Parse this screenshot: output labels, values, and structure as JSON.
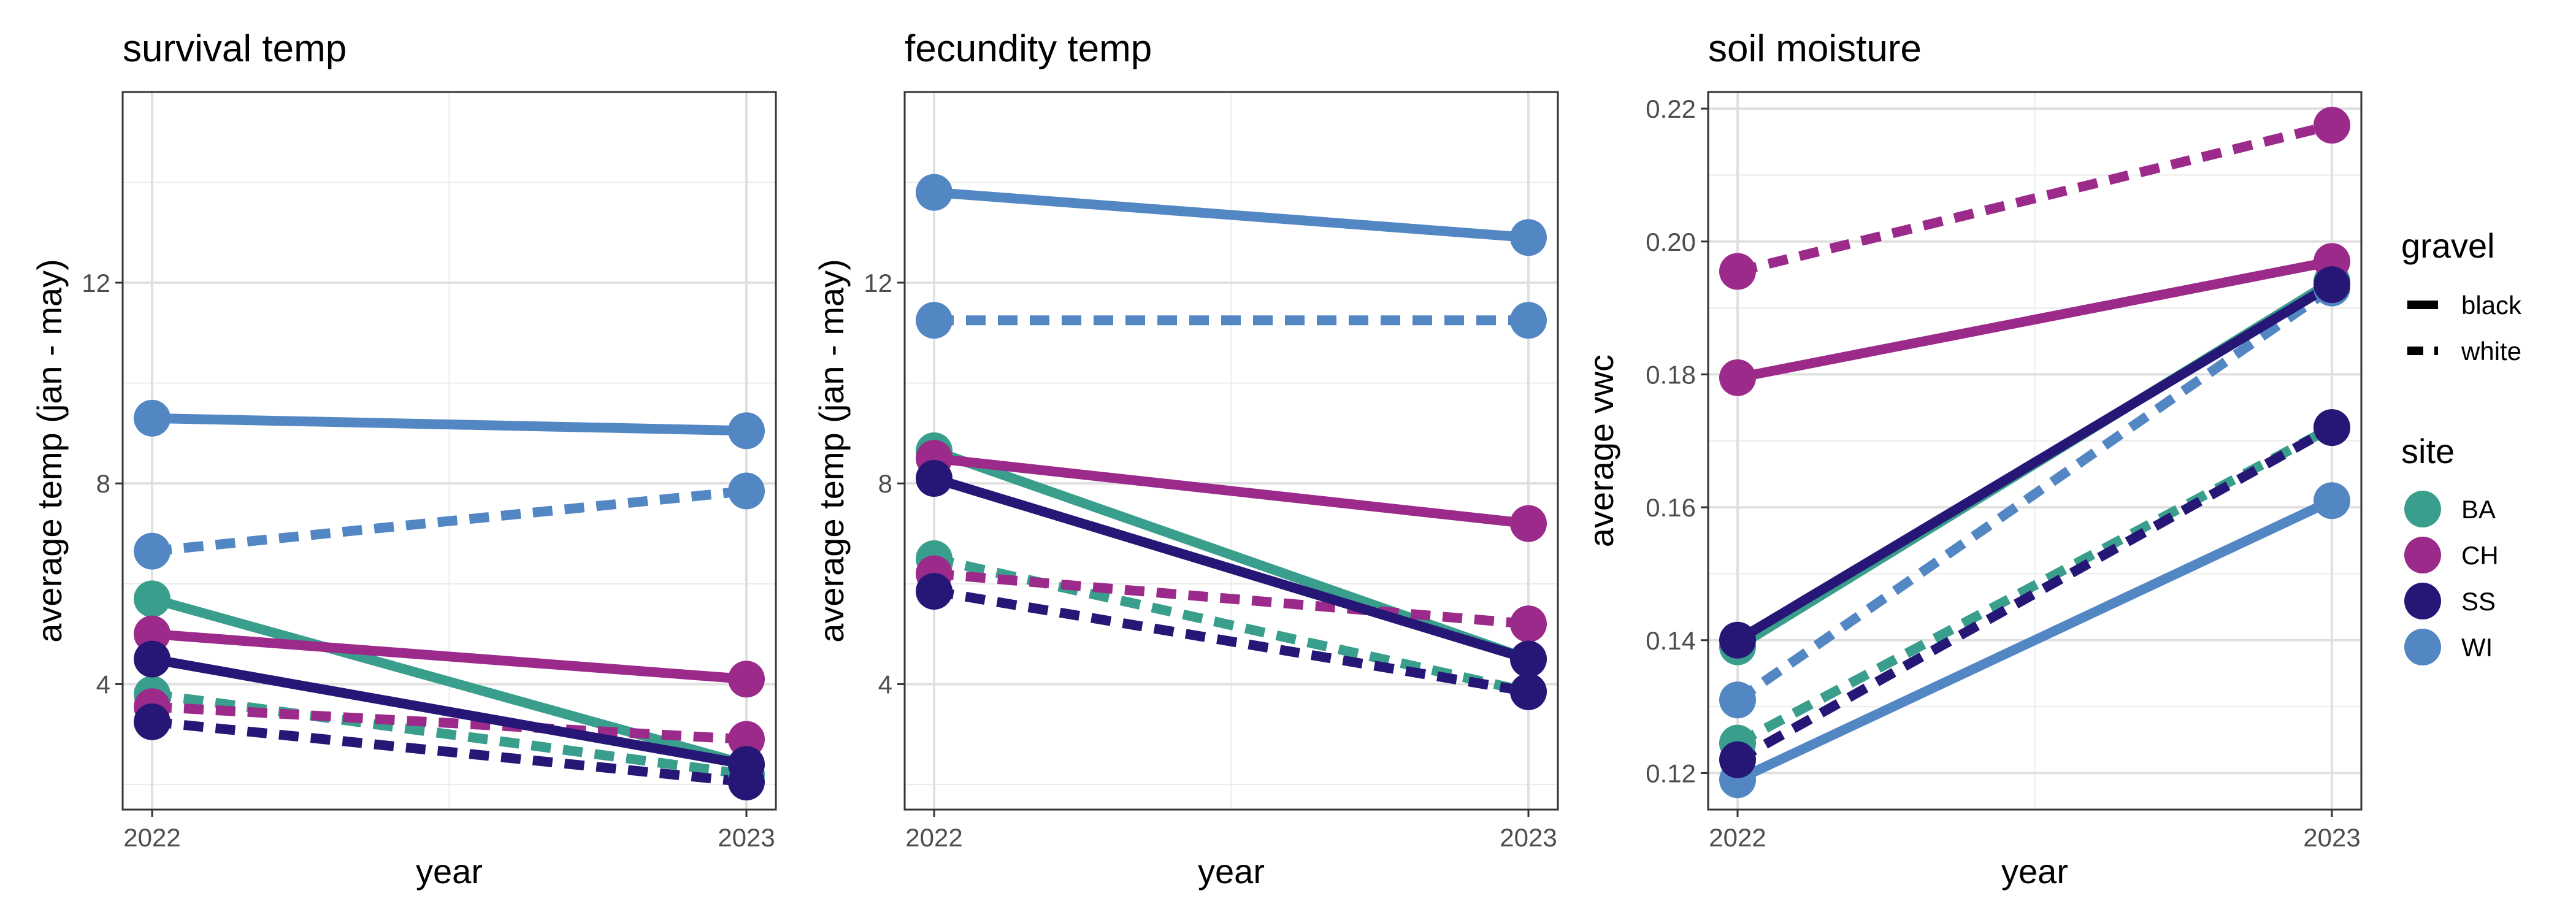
{
  "colors": {
    "BA": "#3a9e8c",
    "CH": "#9b2a8a",
    "SS": "#261777",
    "WI": "#5387c4"
  },
  "legend": {
    "gravel_title": "gravel",
    "gravel_items": [
      {
        "label": "black",
        "linetype": "solid"
      },
      {
        "label": "white",
        "linetype": "dashed"
      }
    ],
    "site_title": "site",
    "site_items": [
      "BA",
      "CH",
      "SS",
      "WI"
    ]
  },
  "chart_data": [
    {
      "type": "line",
      "title": "survival temp",
      "xlabel": "year",
      "ylabel": "average temp (jan - may)",
      "x": [
        "2022",
        "2023"
      ],
      "ylim": [
        1.5,
        15.8
      ],
      "yticks": [
        "4",
        "8",
        "12"
      ],
      "grid": true,
      "series": [
        {
          "site": "BA",
          "gravel": "black",
          "values": [
            5.7,
            2.4
          ]
        },
        {
          "site": "BA",
          "gravel": "white",
          "values": [
            3.8,
            2.2
          ]
        },
        {
          "site": "WI",
          "gravel": "black",
          "values": [
            9.3,
            9.05
          ]
        },
        {
          "site": "WI",
          "gravel": "white",
          "values": [
            6.65,
            7.85
          ]
        },
        {
          "site": "CH",
          "gravel": "black",
          "values": [
            5.0,
            4.1
          ]
        },
        {
          "site": "CH",
          "gravel": "white",
          "values": [
            3.55,
            2.9
          ]
        },
        {
          "site": "SS",
          "gravel": "black",
          "values": [
            4.5,
            2.4
          ]
        },
        {
          "site": "SS",
          "gravel": "white",
          "values": [
            3.25,
            2.05
          ]
        }
      ]
    },
    {
      "type": "line",
      "title": "fecundity temp",
      "xlabel": "year",
      "ylabel": "average temp (jan - may)",
      "x": [
        "2022",
        "2023"
      ],
      "ylim": [
        1.5,
        15.8
      ],
      "yticks": [
        "4",
        "8",
        "12"
      ],
      "grid": true,
      "series": [
        {
          "site": "BA",
          "gravel": "black",
          "values": [
            8.65,
            4.5
          ]
        },
        {
          "site": "BA",
          "gravel": "white",
          "values": [
            6.5,
            3.85
          ]
        },
        {
          "site": "WI",
          "gravel": "black",
          "values": [
            13.8,
            12.9
          ]
        },
        {
          "site": "WI",
          "gravel": "white",
          "values": [
            11.25,
            11.25
          ]
        },
        {
          "site": "CH",
          "gravel": "black",
          "values": [
            8.5,
            7.2
          ]
        },
        {
          "site": "CH",
          "gravel": "white",
          "values": [
            6.2,
            5.2
          ]
        },
        {
          "site": "SS",
          "gravel": "black",
          "values": [
            8.1,
            4.5
          ]
        },
        {
          "site": "SS",
          "gravel": "white",
          "values": [
            5.85,
            3.85
          ]
        }
      ]
    },
    {
      "type": "line",
      "title": "soil moisture",
      "xlabel": "year",
      "ylabel": "average vwc",
      "x": [
        "2022",
        "2023"
      ],
      "ylim": [
        0.1145,
        0.2225
      ],
      "yticks": [
        "0.12",
        "0.14",
        "0.16",
        "0.18",
        "0.20",
        "0.22"
      ],
      "grid": true,
      "series": [
        {
          "site": "BA",
          "gravel": "black",
          "values": [
            0.139,
            0.194
          ]
        },
        {
          "site": "BA",
          "gravel": "white",
          "values": [
            0.1245,
            0.172
          ]
        },
        {
          "site": "WI",
          "gravel": "black",
          "values": [
            0.119,
            0.161
          ]
        },
        {
          "site": "WI",
          "gravel": "white",
          "values": [
            0.131,
            0.193
          ]
        },
        {
          "site": "CH",
          "gravel": "black",
          "values": [
            0.1795,
            0.197
          ]
        },
        {
          "site": "CH",
          "gravel": "white",
          "values": [
            0.1955,
            0.2175
          ]
        },
        {
          "site": "SS",
          "gravel": "black",
          "values": [
            0.14,
            0.1935
          ]
        },
        {
          "site": "SS",
          "gravel": "white",
          "values": [
            0.122,
            0.172
          ]
        }
      ]
    }
  ]
}
